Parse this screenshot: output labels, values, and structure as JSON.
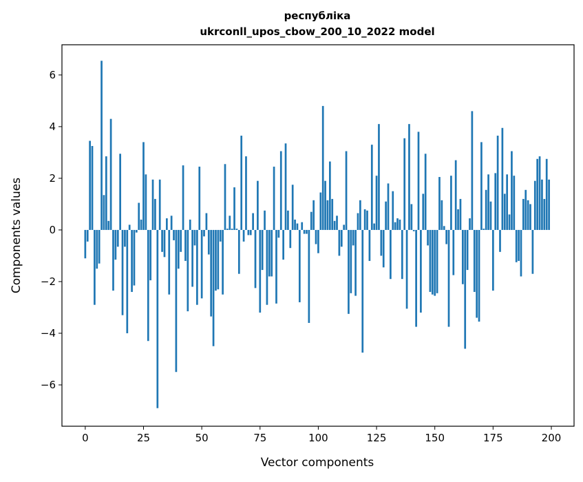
{
  "chart_data": {
    "type": "bar",
    "title": "республіка",
    "subtitle": "ukrconll_upos_cbow_200_10_2022 model",
    "xlabel": "Vector components",
    "ylabel": "Components values",
    "xlim": [
      -10,
      209.75
    ],
    "ylim": [
      -7.6,
      7.17
    ],
    "xticks": [
      0,
      25,
      50,
      75,
      100,
      125,
      150,
      175,
      200
    ],
    "yticks": [
      -6,
      -4,
      -2,
      0,
      2,
      4,
      6
    ],
    "ytick_labels": [
      "−6",
      "−4",
      "−2",
      "0",
      "2",
      "4",
      "6"
    ],
    "grid": false,
    "bar_color": "#1f77b4",
    "values": [
      -1.1,
      -0.45,
      3.45,
      3.25,
      -2.9,
      -1.5,
      -1.3,
      6.55,
      1.35,
      2.85,
      0.35,
      4.3,
      -2.35,
      -1.15,
      -0.65,
      2.95,
      -3.3,
      -0.65,
      -4.0,
      0.2,
      -2.4,
      -2.15,
      -0.1,
      1.05,
      0.4,
      3.4,
      2.15,
      -4.3,
      -1.95,
      1.95,
      1.2,
      -6.9,
      1.95,
      -0.85,
      -1.05,
      0.45,
      -2.5,
      0.55,
      -0.4,
      -5.5,
      -1.5,
      -0.85,
      2.5,
      -1.2,
      -3.15,
      0.4,
      -2.2,
      -0.6,
      -2.9,
      2.45,
      -2.65,
      -0.25,
      0.65,
      -0.95,
      -3.35,
      -4.5,
      -2.35,
      -2.3,
      -0.45,
      -2.5,
      2.55,
      0.05,
      0.55,
      0.05,
      1.65,
      0.05,
      -1.7,
      3.65,
      -0.45,
      2.85,
      -0.2,
      -0.2,
      0.65,
      -2.25,
      1.9,
      -3.2,
      -1.55,
      0.75,
      -2.9,
      -1.8,
      -1.8,
      2.45,
      -2.85,
      -0.3,
      3.05,
      -1.15,
      3.35,
      0.75,
      -0.7,
      1.75,
      0.4,
      0.25,
      -2.8,
      0.3,
      -0.15,
      -0.15,
      -3.6,
      0.7,
      1.15,
      -0.55,
      -0.9,
      1.45,
      4.8,
      1.9,
      1.15,
      2.65,
      1.2,
      0.35,
      0.55,
      -1.0,
      -0.65,
      0.2,
      3.05,
      -3.25,
      -2.45,
      -0.6,
      -2.55,
      0.65,
      1.15,
      -4.75,
      0.8,
      0.75,
      -1.2,
      3.3,
      0.25,
      2.1,
      4.1,
      -1.0,
      -1.45,
      1.1,
      1.8,
      -1.9,
      1.5,
      0.3,
      0.45,
      0.4,
      -1.9,
      3.55,
      -3.05,
      4.1,
      1.0,
      -0.05,
      -3.75,
      3.8,
      -3.2,
      1.4,
      2.95,
      -0.6,
      -2.4,
      -2.5,
      -2.55,
      -2.45,
      2.05,
      1.15,
      0.15,
      -0.55,
      -3.75,
      2.1,
      -1.75,
      2.7,
      0.8,
      1.2,
      -2.1,
      -4.6,
      -1.55,
      0.45,
      4.6,
      -2.4,
      -3.4,
      -3.55,
      3.4,
      0.05,
      1.55,
      2.15,
      1.1,
      -2.35,
      2.2,
      3.65,
      -0.85,
      3.95,
      1.4,
      2.15,
      0.6,
      3.05,
      2.1,
      -1.25,
      -1.2,
      -1.8,
      1.2,
      1.55,
      1.15,
      1.0,
      -1.7,
      1.9,
      2.75,
      2.85,
      1.95,
      1.2,
      2.75,
      1.95
    ]
  }
}
